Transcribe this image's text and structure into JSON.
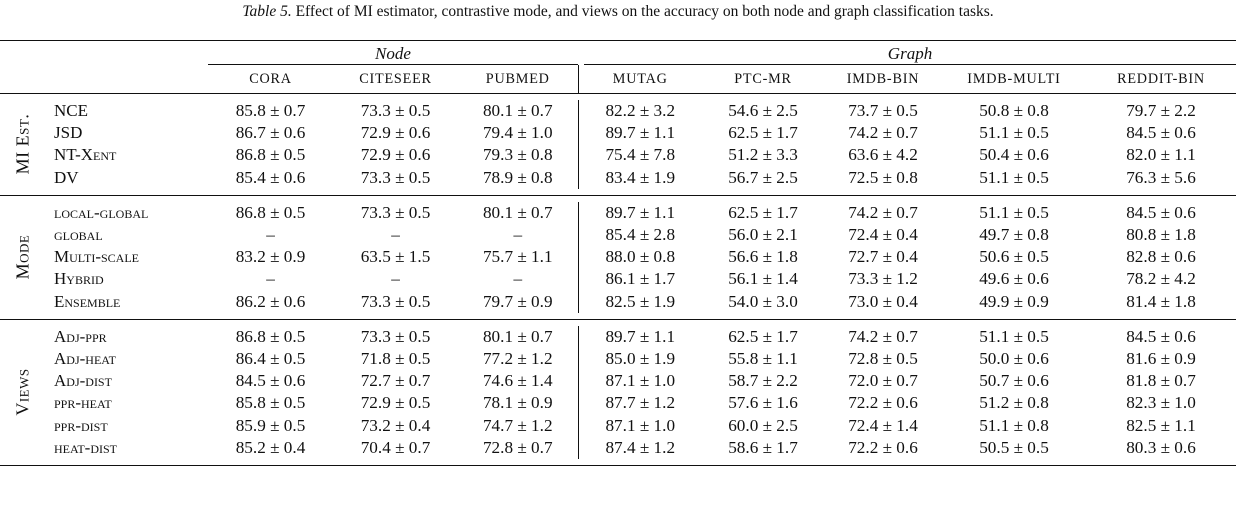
{
  "caption": {
    "label": "Table 5.",
    "text": "Effect of MI estimator, contrastive mode, and views on the accuracy on both node and graph classification tasks."
  },
  "groups": {
    "node": "Node",
    "graph": "Graph"
  },
  "columns": [
    "CORA",
    "CITESEER",
    "PUBMED",
    "MUTAG",
    "PTC-MR",
    "IMDB-BIN",
    "IMDB-MULTI",
    "REDDIT-BIN"
  ],
  "sections": [
    {
      "label": "MI Est.",
      "rows": [
        {
          "label": "NCE",
          "cells": [
            {
              "v": "85.8 ± 0.7",
              "b": false
            },
            {
              "v": "73.3 ± 0.5",
              "b": true
            },
            {
              "v": "80.1 ± 0.7",
              "b": true
            },
            {
              "v": "82.2 ± 3.2",
              "b": false
            },
            {
              "v": "54.6 ± 2.5",
              "b": false
            },
            {
              "v": "73.7 ± 0.5",
              "b": false
            },
            {
              "v": "50.8 ± 0.8",
              "b": false
            },
            {
              "v": "79.7 ± 2.2",
              "b": false
            }
          ]
        },
        {
          "label": "JSD",
          "cells": [
            {
              "v": "86.7 ± 0.6",
              "b": false
            },
            {
              "v": "72.9 ± 0.6",
              "b": false
            },
            {
              "v": "79.4 ± 1.0",
              "b": false
            },
            {
              "v": "89.7 ± 1.1",
              "b": true
            },
            {
              "v": "62.5 ± 1.7",
              "b": true
            },
            {
              "v": "74.2 ± 0.7",
              "b": true
            },
            {
              "v": "51.1 ± 0.5",
              "b": true
            },
            {
              "v": "84.5 ± 0.6",
              "b": true
            }
          ]
        },
        {
          "label": "NT-Xent",
          "cells": [
            {
              "v": "86.8 ± 0.5",
              "b": true
            },
            {
              "v": "72.9 ± 0.6",
              "b": false
            },
            {
              "v": "79.3 ± 0.8",
              "b": false
            },
            {
              "v": "75.4 ± 7.8",
              "b": false
            },
            {
              "v": "51.2 ± 3.3",
              "b": false
            },
            {
              "v": "63.6 ± 4.2",
              "b": false
            },
            {
              "v": "50.4 ± 0.6",
              "b": false
            },
            {
              "v": "82.0 ± 1.1",
              "b": false
            }
          ]
        },
        {
          "label": "DV",
          "cells": [
            {
              "v": "85.4 ± 0.6",
              "b": false
            },
            {
              "v": "73.3 ± 0.5",
              "b": true
            },
            {
              "v": "78.9 ± 0.8",
              "b": false
            },
            {
              "v": "83.4 ± 1.9",
              "b": false
            },
            {
              "v": "56.7 ± 2.5",
              "b": false
            },
            {
              "v": "72.5 ± 0.8",
              "b": false
            },
            {
              "v": "51.1 ± 0.5",
              "b": true
            },
            {
              "v": "76.3 ± 5.6",
              "b": false
            }
          ]
        }
      ]
    },
    {
      "label": "Mode",
      "rows": [
        {
          "label": "local-global",
          "cells": [
            {
              "v": "86.8 ± 0.5",
              "b": true
            },
            {
              "v": "73.3 ± 0.5",
              "b": true
            },
            {
              "v": "80.1 ± 0.7",
              "b": true
            },
            {
              "v": "89.7 ± 1.1",
              "b": true
            },
            {
              "v": "62.5 ± 1.7",
              "b": true
            },
            {
              "v": "74.2 ± 0.7",
              "b": true
            },
            {
              "v": "51.1 ± 0.5",
              "b": true
            },
            {
              "v": "84.5 ± 0.6",
              "b": true
            }
          ]
        },
        {
          "label": "global",
          "cells": [
            {
              "v": "–",
              "b": false
            },
            {
              "v": "–",
              "b": false
            },
            {
              "v": "–",
              "b": false
            },
            {
              "v": "85.4 ± 2.8",
              "b": false
            },
            {
              "v": "56.0 ± 2.1",
              "b": false
            },
            {
              "v": "72.4 ± 0.4",
              "b": false
            },
            {
              "v": "49.7 ± 0.8",
              "b": false
            },
            {
              "v": "80.8 ± 1.8",
              "b": false
            }
          ]
        },
        {
          "label": "Multi-scale",
          "cells": [
            {
              "v": "83.2 ± 0.9",
              "b": false
            },
            {
              "v": "63.5 ± 1.5",
              "b": false
            },
            {
              "v": "75.7 ± 1.1",
              "b": false
            },
            {
              "v": "88.0 ± 0.8",
              "b": false
            },
            {
              "v": "56.6 ± 1.8",
              "b": false
            },
            {
              "v": "72.7 ± 0.4",
              "b": false
            },
            {
              "v": "50.6 ± 0.5",
              "b": false
            },
            {
              "v": "82.8 ± 0.6",
              "b": false
            }
          ]
        },
        {
          "label": "Hybrid",
          "cells": [
            {
              "v": "–",
              "b": false
            },
            {
              "v": "–",
              "b": false
            },
            {
              "v": "–",
              "b": false
            },
            {
              "v": "86.1 ± 1.7",
              "b": false
            },
            {
              "v": "56.1 ± 1.4",
              "b": false
            },
            {
              "v": "73.3 ± 1.2",
              "b": false
            },
            {
              "v": "49.6 ± 0.6",
              "b": false
            },
            {
              "v": "78.2 ± 4.2",
              "b": false
            }
          ]
        },
        {
          "label": "Ensemble",
          "cells": [
            {
              "v": "86.2 ± 0.6",
              "b": false
            },
            {
              "v": "73.3 ± 0.5",
              "b": true
            },
            {
              "v": "79.7 ± 0.9",
              "b": false
            },
            {
              "v": "82.5 ± 1.9",
              "b": false
            },
            {
              "v": "54.0 ± 3.0",
              "b": false
            },
            {
              "v": "73.0 ± 0.4",
              "b": false
            },
            {
              "v": "49.9 ± 0.9",
              "b": false
            },
            {
              "v": "81.4 ± 1.8",
              "b": false
            }
          ]
        }
      ]
    },
    {
      "label": "Views",
      "rows": [
        {
          "label": "Adj-ppr",
          "cells": [
            {
              "v": "86.8 ± 0.5",
              "b": true
            },
            {
              "v": "73.3 ± 0.5",
              "b": true
            },
            {
              "v": "80.1 ± 0.7",
              "b": true
            },
            {
              "v": "89.7 ± 1.1",
              "b": true
            },
            {
              "v": "62.5 ± 1.7",
              "b": true
            },
            {
              "v": "74.2 ± 0.7",
              "b": true
            },
            {
              "v": "51.1 ± 0.5",
              "b": false
            },
            {
              "v": "84.5 ± 0.6",
              "b": true
            }
          ]
        },
        {
          "label": "Adj-heat",
          "cells": [
            {
              "v": "86.4 ± 0.5",
              "b": false
            },
            {
              "v": "71.8 ± 0.5",
              "b": false
            },
            {
              "v": "77.2 ± 1.2",
              "b": false
            },
            {
              "v": "85.0 ± 1.9",
              "b": false
            },
            {
              "v": "55.8 ± 1.1",
              "b": false
            },
            {
              "v": "72.8 ± 0.5",
              "b": false
            },
            {
              "v": "50.0 ± 0.6",
              "b": false
            },
            {
              "v": "81.6 ± 0.9",
              "b": false
            }
          ]
        },
        {
          "label": "Adj-dist",
          "cells": [
            {
              "v": "84.5 ± 0.6",
              "b": false
            },
            {
              "v": "72.7 ± 0.7",
              "b": false
            },
            {
              "v": "74.6 ± 1.4",
              "b": false
            },
            {
              "v": "87.1 ± 1.0",
              "b": false
            },
            {
              "v": "58.7 ± 2.2",
              "b": false
            },
            {
              "v": "72.0 ± 0.7",
              "b": false
            },
            {
              "v": "50.7 ± 0.6",
              "b": false
            },
            {
              "v": "81.8 ± 0.7",
              "b": false
            }
          ]
        },
        {
          "label": "ppr-heat",
          "cells": [
            {
              "v": "85.8 ± 0.5",
              "b": false
            },
            {
              "v": "72.9 ± 0.5",
              "b": false
            },
            {
              "v": "78.1 ± 0.9",
              "b": false
            },
            {
              "v": "87.7 ± 1.2",
              "b": false
            },
            {
              "v": "57.6 ± 1.6",
              "b": false
            },
            {
              "v": "72.2 ± 0.6",
              "b": false
            },
            {
              "v": "51.2 ± 0.8",
              "b": true
            },
            {
              "v": "82.3 ± 1.0",
              "b": false
            }
          ]
        },
        {
          "label": "ppr-dist",
          "cells": [
            {
              "v": "85.9 ± 0.5",
              "b": false
            },
            {
              "v": "73.2 ± 0.4",
              "b": false
            },
            {
              "v": "74.7 ± 1.2",
              "b": false
            },
            {
              "v": "87.1 ± 1.0",
              "b": false
            },
            {
              "v": "60.0 ± 2.5",
              "b": false
            },
            {
              "v": "72.4 ± 1.4",
              "b": false
            },
            {
              "v": "51.1 ± 0.8",
              "b": false
            },
            {
              "v": "82.5 ± 1.1",
              "b": false
            }
          ]
        },
        {
          "label": "heat-dist",
          "cells": [
            {
              "v": "85.2 ± 0.4",
              "b": false
            },
            {
              "v": "70.4 ± 0.7",
              "b": false
            },
            {
              "v": "72.8 ± 0.7",
              "b": false
            },
            {
              "v": "87.4 ± 1.2",
              "b": false
            },
            {
              "v": "58.6 ± 1.7",
              "b": false
            },
            {
              "v": "72.2 ± 0.6",
              "b": false
            },
            {
              "v": "50.5 ± 0.5",
              "b": false
            },
            {
              "v": "80.3 ± 0.6",
              "b": false
            }
          ]
        }
      ]
    }
  ]
}
